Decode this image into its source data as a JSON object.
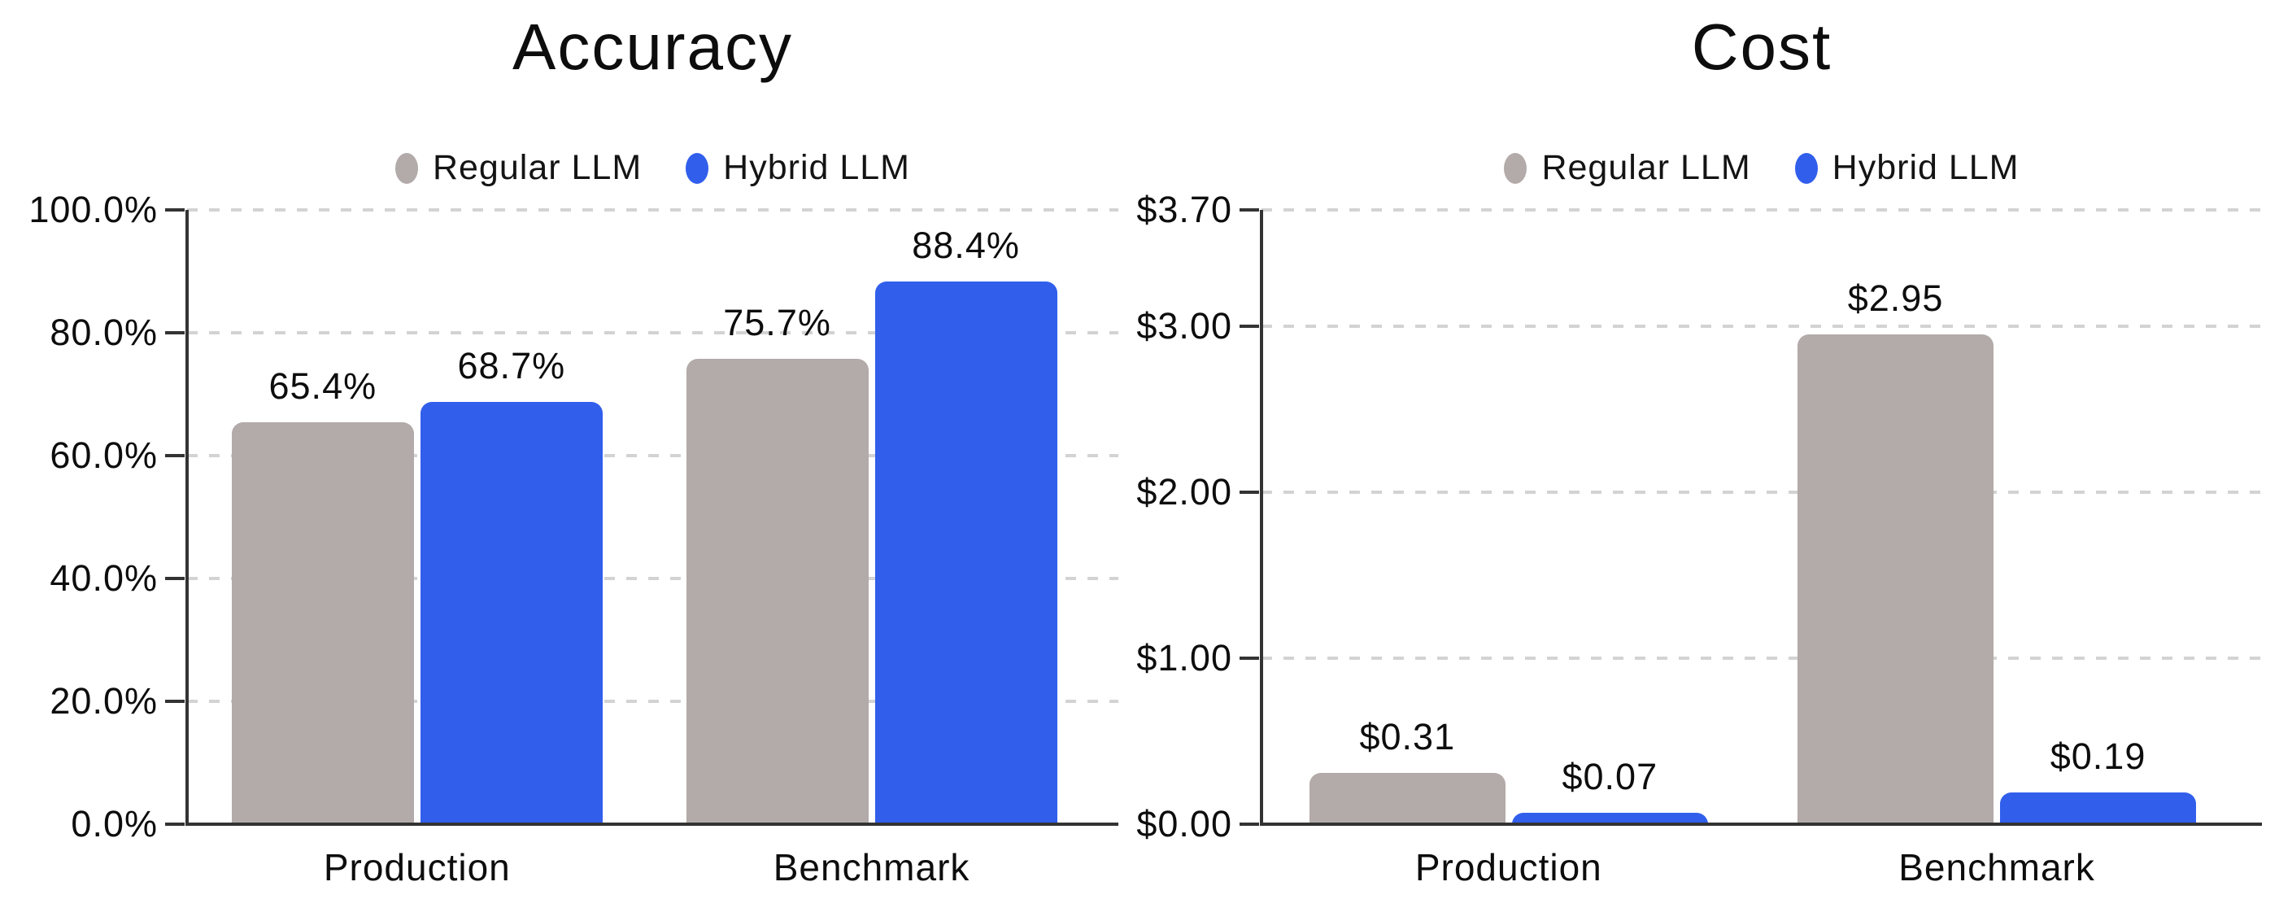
{
  "styles": {
    "background": "#ffffff",
    "grid_color": "#d3d3d3",
    "axis_color": "#333333",
    "text_color": "#0d0d0d",
    "regular_llm_color": "#b3aaaa",
    "hybrid_llm_color": "#315fec"
  },
  "chart_data": [
    {
      "type": "bar",
      "title": "Accuracy",
      "categories": [
        "Production",
        "Benchmark"
      ],
      "series": [
        {
          "name": "Regular LLM",
          "color": "#b3aaaa",
          "values": [
            65.4,
            75.7
          ],
          "labels": [
            "65.4%",
            "75.7%"
          ]
        },
        {
          "name": "Hybrid LLM",
          "color": "#315fec",
          "values": [
            68.7,
            88.4
          ],
          "labels": [
            "68.7%",
            "88.4%"
          ]
        }
      ],
      "ylim": [
        0,
        100
      ],
      "y_ticks": [
        {
          "value": 0,
          "label": "0.0%"
        },
        {
          "value": 20,
          "label": "20.0%"
        },
        {
          "value": 40,
          "label": "40.0%"
        },
        {
          "value": 60,
          "label": "60.0%"
        },
        {
          "value": 80,
          "label": "80.0%"
        },
        {
          "value": 100,
          "label": "100.0%"
        }
      ],
      "xlabel": "",
      "ylabel": "",
      "grid": "horizontal-dashed",
      "legend_position": "top-center"
    },
    {
      "type": "bar",
      "title": "Cost",
      "categories": [
        "Production",
        "Benchmark"
      ],
      "series": [
        {
          "name": "Regular LLM",
          "color": "#b3aaaa",
          "values": [
            0.31,
            2.95
          ],
          "labels": [
            "$0.31",
            "$2.95"
          ]
        },
        {
          "name": "Hybrid LLM",
          "color": "#315fec",
          "values": [
            0.07,
            0.19
          ],
          "labels": [
            "$0.07",
            "$0.19"
          ]
        }
      ],
      "ylim": [
        0,
        3.7
      ],
      "y_ticks": [
        {
          "value": 0,
          "label": "$0.00"
        },
        {
          "value": 1,
          "label": "$1.00"
        },
        {
          "value": 2,
          "label": "$2.00"
        },
        {
          "value": 3,
          "label": "$3.00"
        },
        {
          "value": 3.7,
          "label": "$3.70"
        }
      ],
      "xlabel": "",
      "ylabel": "",
      "grid": "horizontal-dashed",
      "legend_position": "top-center"
    }
  ]
}
